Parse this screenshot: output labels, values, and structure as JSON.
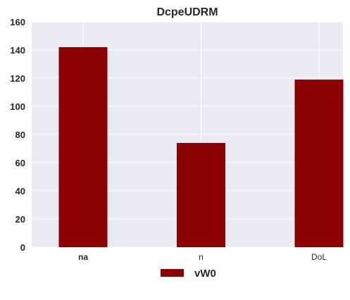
{
  "chart_data": {
    "type": "bar",
    "title": "DcpeUDRM",
    "categories": [
      "na",
      "n",
      "DoL"
    ],
    "series": [
      {
        "name": "vW0",
        "values": [
          142,
          74,
          119
        ],
        "color": "#8b0000"
      }
    ],
    "xlabel": "",
    "ylabel": "",
    "ylim": [
      0,
      160
    ],
    "yticks": [
      0,
      20,
      40,
      60,
      80,
      100,
      120,
      140,
      160
    ],
    "grid": true,
    "legend_position": "bottom-center",
    "background_color": "#eaeaf2",
    "grid_color": "#ffffff"
  }
}
